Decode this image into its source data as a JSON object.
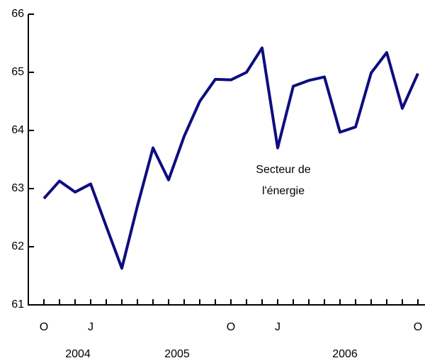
{
  "chart_data": {
    "type": "line",
    "categories": [
      "O",
      null,
      null,
      "J",
      null,
      null,
      null,
      null,
      null,
      null,
      null,
      null,
      "O",
      null,
      null,
      "J",
      null,
      null,
      null,
      null,
      null,
      null,
      null,
      null,
      "O"
    ],
    "years": [
      "2004",
      "2005",
      "2006"
    ],
    "annotation": [
      "Secteur de",
      "l'énergie"
    ],
    "series": [
      {
        "color": "#0d0d80",
        "values": [
          62.83,
          63.13,
          62.94,
          63.08,
          62.35,
          61.63,
          62.7,
          63.7,
          63.15,
          63.9,
          64.5,
          64.88,
          64.87,
          65.0,
          65.42,
          63.7,
          64.76,
          64.86,
          64.92,
          63.97,
          64.06,
          64.99,
          65.34,
          64.38,
          64.98
        ]
      }
    ],
    "ylim": [
      61,
      66
    ],
    "yticks": [
      61,
      62,
      63,
      64,
      65,
      66
    ]
  }
}
